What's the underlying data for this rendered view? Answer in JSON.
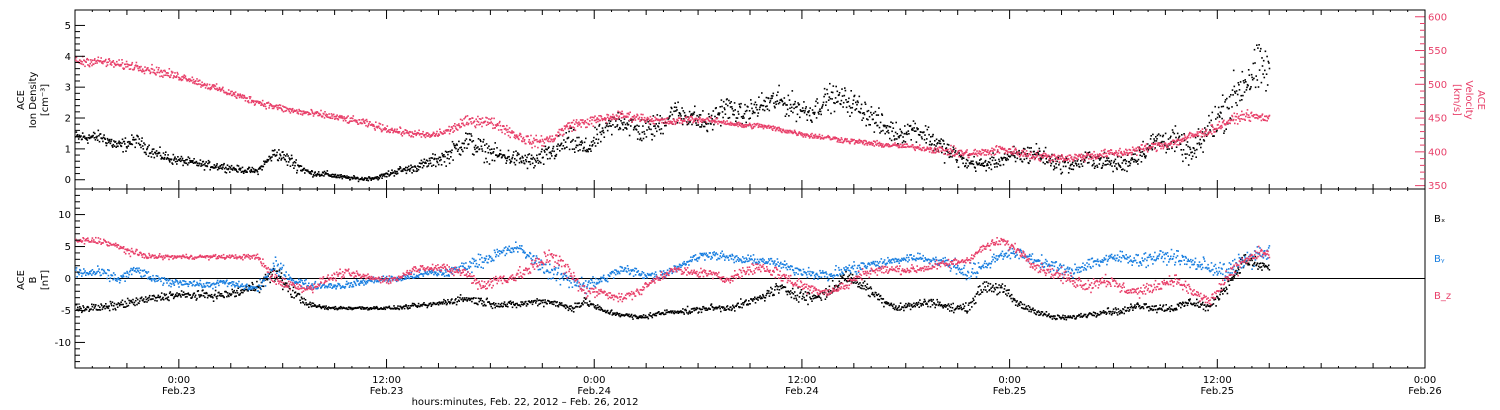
{
  "chart_data": [
    {
      "type": "scatter",
      "panel": "plasma",
      "ylabel_left": [
        "ACE",
        "Ion Density",
        "[cm⁻³]"
      ],
      "ylabel_right": [
        "ACE",
        "Velocity",
        "[km/s]"
      ],
      "ylim_left": [
        -0.3,
        5.5
      ],
      "ylim_right": [
        345,
        610
      ],
      "yticks_left": [
        "0",
        "1",
        "2",
        "3",
        "4",
        "5"
      ],
      "yticks_right": [
        "350",
        "400",
        "450",
        "500",
        "550",
        "600"
      ],
      "grid": false,
      "series": [
        {
          "name": "Ion Density",
          "axis": "left",
          "color": "#000000",
          "x_hours": [
            -4.5,
            -3.5,
            -2.5,
            -1.5,
            -0.5,
            0.5,
            1.5,
            2.5,
            3.5,
            4.5,
            5.5,
            6.5,
            7.5,
            8.5,
            9.5,
            10.5,
            11.5,
            12.5,
            13.5,
            14.5,
            15.5,
            16.5,
            17.5,
            18.5,
            19.5,
            20.5,
            21.5,
            22.5,
            23.5,
            24.5,
            25.5,
            26.5,
            27.5,
            28.5,
            29.5,
            30.5,
            31.5,
            32.5,
            33.5,
            34.5,
            35.5,
            36.5,
            37.5,
            38.5,
            39.5,
            40.5,
            41.5,
            42.5,
            43.5,
            44.5,
            45.5,
            46.5,
            47.5,
            48.5,
            49.5,
            50.5,
            51.5,
            52.5,
            53.5,
            54.5,
            55.5,
            56.5,
            57.5,
            58.5,
            59.5,
            60.5,
            61.5,
            62.5
          ],
          "values": [
            1.4,
            1.1,
            1.3,
            0.9,
            0.7,
            0.6,
            0.5,
            0.45,
            0.35,
            0.3,
            0.9,
            0.6,
            0.25,
            0.2,
            0.1,
            0.05,
            0.1,
            0.3,
            0.4,
            0.6,
            0.8,
            1.3,
            1.0,
            0.8,
            0.7,
            0.6,
            0.9,
            1.3,
            1.0,
            1.6,
            2.0,
            1.6,
            1.7,
            2.2,
            2.1,
            1.8,
            2.4,
            2.1,
            2.4,
            2.6,
            2.4,
            2.2,
            2.7,
            2.6,
            2.3,
            1.8,
            1.5,
            1.7,
            1.3,
            0.9,
            0.6,
            0.5,
            0.7,
            0.8,
            0.9,
            0.6,
            0.5,
            0.7,
            0.6,
            0.5,
            0.9,
            1.3,
            1.3,
            0.8,
            1.7,
            2.4,
            3.2,
            3.6
          ],
          "spread": [
            0.3,
            0.35,
            0.3,
            0.3,
            0.25,
            0.2,
            0.2,
            0.2,
            0.15,
            0.15,
            0.3,
            0.35,
            0.15,
            0.15,
            0.1,
            0.1,
            0.1,
            0.2,
            0.2,
            0.3,
            0.4,
            0.6,
            0.5,
            0.4,
            0.4,
            0.4,
            0.5,
            0.6,
            0.5,
            0.5,
            0.6,
            0.6,
            0.6,
            0.6,
            0.6,
            0.5,
            0.6,
            0.5,
            0.6,
            0.6,
            0.6,
            0.5,
            0.6,
            0.6,
            0.6,
            0.6,
            0.5,
            0.5,
            0.6,
            0.5,
            0.4,
            0.3,
            0.4,
            0.5,
            0.5,
            0.4,
            0.4,
            0.4,
            0.4,
            0.4,
            0.5,
            0.6,
            0.6,
            0.6,
            0.8,
            1.0,
            1.2,
            1.2
          ]
        },
        {
          "name": "Velocity",
          "axis": "right",
          "color": "#e8406a",
          "x_hours": [
            -4.5,
            -3.5,
            -2.5,
            -1.5,
            -0.5,
            0.5,
            1.5,
            2.5,
            3.5,
            4.5,
            5.5,
            6.5,
            7.5,
            8.5,
            9.5,
            10.5,
            11.5,
            12.5,
            13.5,
            14.5,
            15.5,
            16.5,
            17.5,
            18.5,
            19.5,
            20.5,
            21.5,
            22.5,
            23.5,
            24.5,
            25.5,
            26.5,
            27.5,
            28.5,
            29.5,
            30.5,
            31.5,
            32.5,
            33.5,
            34.5,
            35.5,
            36.5,
            37.5,
            38.5,
            39.5,
            40.5,
            41.5,
            42.5,
            43.5,
            44.5,
            45.5,
            46.5,
            47.5,
            48.5,
            49.5,
            50.5,
            51.5,
            52.5,
            53.5,
            54.5,
            55.5,
            56.5,
            57.5,
            58.5,
            59.5,
            60.5,
            61.5,
            62.5
          ],
          "values": [
            535,
            530,
            528,
            522,
            515,
            510,
            500,
            492,
            483,
            475,
            468,
            462,
            458,
            455,
            450,
            445,
            438,
            432,
            428,
            425,
            432,
            445,
            448,
            440,
            425,
            415,
            420,
            440,
            445,
            450,
            455,
            452,
            448,
            445,
            450,
            448,
            445,
            440,
            440,
            435,
            430,
            425,
            422,
            418,
            415,
            412,
            410,
            408,
            405,
            402,
            398,
            400,
            405,
            400,
            395,
            393,
            392,
            395,
            398,
            400,
            405,
            410,
            415,
            425,
            432,
            445,
            455,
            452
          ],
          "spread": [
            10,
            10,
            10,
            10,
            10,
            8,
            8,
            8,
            8,
            8,
            8,
            8,
            8,
            8,
            8,
            8,
            8,
            8,
            8,
            8,
            10,
            12,
            12,
            12,
            12,
            12,
            12,
            12,
            12,
            10,
            10,
            10,
            8,
            8,
            8,
            6,
            6,
            6,
            6,
            6,
            6,
            6,
            6,
            6,
            6,
            6,
            6,
            6,
            8,
            10,
            10,
            10,
            10,
            10,
            10,
            10,
            10,
            10,
            10,
            10,
            10,
            10,
            10,
            10,
            10,
            10,
            10,
            10
          ]
        }
      ]
    },
    {
      "type": "scatter",
      "panel": "magnetic-field",
      "ylabel": [
        "ACE",
        "B",
        "[nT]"
      ],
      "ylim": [
        -14,
        14
      ],
      "yticks": [
        "-10",
        "-5",
        "0",
        "5",
        "10"
      ],
      "zero_line": true,
      "grid": false,
      "legend_position": "right",
      "series": [
        {
          "name": "Bₓ",
          "color": "#000000",
          "x_hours": [
            -4.5,
            -3.5,
            -2.5,
            -1.5,
            -0.5,
            0.5,
            1.5,
            2.5,
            3.5,
            4.5,
            5.5,
            6.5,
            7.5,
            8.5,
            9.5,
            10.5,
            11.5,
            12.5,
            13.5,
            14.5,
            15.5,
            16.5,
            17.5,
            18.5,
            19.5,
            20.5,
            21.5,
            22.5,
            23.5,
            24.5,
            25.5,
            26.5,
            27.5,
            28.5,
            29.5,
            30.5,
            31.5,
            32.5,
            33.5,
            34.5,
            35.5,
            36.5,
            37.5,
            38.5,
            39.5,
            40.5,
            41.5,
            42.5,
            43.5,
            44.5,
            45.5,
            46.5,
            47.5,
            48.5,
            49.5,
            50.5,
            51.5,
            52.5,
            53.5,
            54.5,
            55.5,
            56.5,
            57.5,
            58.5,
            59.5,
            60.5,
            61.5,
            62.5
          ],
          "values": [
            -4.5,
            -4,
            -3.5,
            -3,
            -2.5,
            -2.5,
            -2.5,
            -2.5,
            -2,
            -1,
            1,
            -2,
            -4,
            -4.5,
            -4.5,
            -4.5,
            -4.5,
            -4.5,
            -4.2,
            -4,
            -3.5,
            -3,
            -3.5,
            -4,
            -4,
            -3.5,
            -3.5,
            -4.5,
            -3.5,
            -5,
            -5.5,
            -6,
            -5.5,
            -5,
            -5,
            -4.5,
            -4.5,
            -4,
            -3,
            -1.5,
            -2,
            -3,
            -2,
            0.5,
            -1,
            -3,
            -4.5,
            -4,
            -3.5,
            -4.5,
            -4.5,
            -1,
            -1.5,
            -4,
            -5,
            -6,
            -6,
            -5.5,
            -5,
            -5,
            -4,
            -4.5,
            -4.5,
            -3.5,
            -4.5,
            -1,
            3,
            2
          ],
          "spread": [
            1,
            1,
            1,
            1,
            1,
            1,
            1,
            1,
            1.2,
            1.5,
            2,
            1.5,
            0.6,
            0.4,
            0.4,
            0.4,
            0.4,
            0.4,
            0.5,
            0.6,
            0.8,
            1,
            1,
            0.8,
            0.8,
            0.8,
            1,
            1,
            1,
            0.6,
            0.6,
            0.6,
            0.6,
            0.6,
            0.8,
            0.8,
            0.8,
            1,
            1,
            1.5,
            1.5,
            1.5,
            1.5,
            1.5,
            1.5,
            1.2,
            1,
            1,
            1,
            1,
            1,
            1.5,
            1.5,
            1,
            0.8,
            0.6,
            0.6,
            0.6,
            0.8,
            0.8,
            1,
            1,
            1,
            1.2,
            1.2,
            1.5,
            1.5,
            1.5
          ]
        },
        {
          "name": "Bᵧ",
          "color": "#1a7fe0",
          "x_hours": [
            -4.5,
            -3.5,
            -2.5,
            -1.5,
            -0.5,
            0.5,
            1.5,
            2.5,
            3.5,
            4.5,
            5.5,
            6.5,
            7.5,
            8.5,
            9.5,
            10.5,
            11.5,
            12.5,
            13.5,
            14.5,
            15.5,
            16.5,
            17.5,
            18.5,
            19.5,
            20.5,
            21.5,
            22.5,
            23.5,
            24.5,
            25.5,
            26.5,
            27.5,
            28.5,
            29.5,
            30.5,
            31.5,
            32.5,
            33.5,
            34.5,
            35.5,
            36.5,
            37.5,
            38.5,
            39.5,
            40.5,
            41.5,
            42.5,
            43.5,
            44.5,
            45.5,
            46.5,
            47.5,
            48.5,
            49.5,
            50.5,
            51.5,
            52.5,
            53.5,
            54.5,
            55.5,
            56.5,
            57.5,
            58.5,
            59.5,
            60.5,
            61.5,
            62.5
          ],
          "values": [
            1,
            0,
            1.5,
            0,
            -0.5,
            -0.5,
            -1,
            -0.5,
            -1,
            -1.5,
            2,
            0,
            -1,
            -1,
            -1,
            -0.5,
            0,
            0,
            0.5,
            1,
            1,
            2,
            3,
            4,
            5,
            3,
            1,
            0,
            -1,
            0,
            1.5,
            1,
            0.5,
            1.5,
            3,
            4,
            3.5,
            3,
            3,
            2.5,
            1.5,
            1,
            0.5,
            1.5,
            2,
            2.5,
            3,
            3.5,
            3,
            2.5,
            1,
            2,
            4,
            4,
            3,
            2,
            1,
            2.5,
            3,
            3.5,
            3,
            3.5,
            3.5,
            2.5,
            2,
            1,
            3,
            4
          ],
          "spread": [
            1.2,
            1.2,
            1.2,
            1,
            1,
            0.8,
            0.8,
            0.8,
            0.8,
            1,
            2,
            1.5,
            0.8,
            0.8,
            0.8,
            0.8,
            0.8,
            0.8,
            0.8,
            1,
            1,
            1.5,
            1.5,
            1.5,
            1.2,
            1.5,
            2,
            2,
            2,
            1.2,
            1.2,
            1.2,
            1,
            1,
            1,
            1,
            1,
            1,
            1,
            1,
            1,
            1.2,
            1.5,
            1.5,
            1.5,
            1.2,
            1,
            1,
            1,
            1.5,
            2,
            1.5,
            1.2,
            1.2,
            1.2,
            1.5,
            1.5,
            1.5,
            1.5,
            1.5,
            1.5,
            1.5,
            1.5,
            1.5,
            2,
            2,
            2,
            2
          ]
        },
        {
          "name": "B_z",
          "color": "#e8406a",
          "x_hours": [
            -4.5,
            -3.5,
            -2.5,
            -1.5,
            -0.5,
            0.5,
            1.5,
            2.5,
            3.5,
            4.5,
            5.5,
            6.5,
            7.5,
            8.5,
            9.5,
            10.5,
            11.5,
            12.5,
            13.5,
            14.5,
            15.5,
            16.5,
            17.5,
            18.5,
            19.5,
            20.5,
            21.5,
            22.5,
            23.5,
            24.5,
            25.5,
            26.5,
            27.5,
            28.5,
            29.5,
            30.5,
            31.5,
            32.5,
            33.5,
            34.5,
            35.5,
            36.5,
            37.5,
            38.5,
            39.5,
            40.5,
            41.5,
            42.5,
            43.5,
            44.5,
            45.5,
            46.5,
            47.5,
            48.5,
            49.5,
            50.5,
            51.5,
            52.5,
            53.5,
            54.5,
            55.5,
            56.5,
            57.5,
            58.5,
            59.5,
            60.5,
            61.5,
            62.5
          ],
          "values": [
            6,
            5,
            4,
            3.5,
            3.5,
            3.5,
            3.5,
            3.5,
            3.5,
            3.5,
            0,
            -1,
            -1.5,
            0,
            1,
            0.5,
            0,
            0,
            1.5,
            2,
            1.5,
            1,
            -1,
            0,
            0.5,
            2,
            4,
            1,
            -2,
            -2,
            -3,
            -2,
            0,
            1.5,
            1,
            1,
            0,
            1,
            2,
            1,
            -0.5,
            -1.5,
            -2,
            -1,
            1,
            1.5,
            1.5,
            1.5,
            2,
            2.5,
            3,
            5,
            6,
            4.5,
            2,
            1,
            0,
            -1,
            0,
            -1.5,
            -2,
            -1,
            0,
            -2,
            -3.5,
            0,
            3,
            4
          ],
          "spread": [
            0.8,
            0.8,
            0.8,
            0.6,
            0.5,
            0.5,
            0.5,
            0.5,
            0.5,
            0.8,
            1.5,
            1.2,
            1,
            1,
            1,
            0.8,
            0.8,
            0.8,
            0.8,
            1,
            1,
            1.2,
            1.5,
            1.5,
            1.5,
            2,
            2,
            2,
            1.5,
            1,
            1,
            1,
            1,
            1,
            1,
            1,
            1,
            1.2,
            1.5,
            1.5,
            1.5,
            1.2,
            1,
            1.2,
            1.2,
            1,
            1,
            1,
            1,
            1,
            1,
            1,
            1,
            1,
            1.2,
            1.5,
            1.5,
            1.5,
            1.5,
            1.5,
            1.2,
            1.2,
            1.2,
            1.5,
            1.5,
            1.5,
            1.5,
            1.5
          ]
        }
      ]
    }
  ],
  "time_axis": {
    "range_hours": [
      -6,
      72
    ],
    "data_end_hours": 63,
    "tick_labels": [
      {
        "time": "0:00",
        "date": "Feb.23"
      },
      {
        "time": "12:00",
        "date": "Feb.23"
      },
      {
        "time": "0:00",
        "date": "Feb.24"
      },
      {
        "time": "12:00",
        "date": "Feb.24"
      },
      {
        "time": "0:00",
        "date": "Feb.25"
      },
      {
        "time": "12:00",
        "date": "Feb.25"
      },
      {
        "time": "0:00",
        "date": "Feb.26"
      }
    ],
    "xlabel": "hours:minutes, Feb. 22, 2012 – Feb. 26, 2012"
  }
}
